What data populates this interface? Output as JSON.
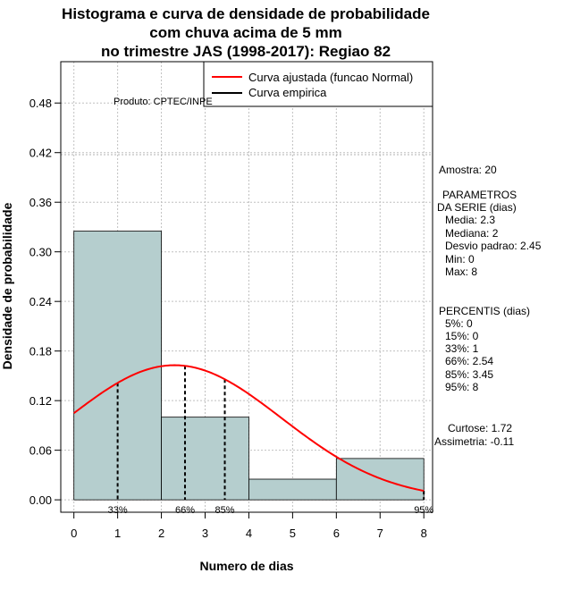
{
  "chart_data": {
    "type": "bar",
    "title": [
      "Histograma e curva de densidade de probabilidade",
      "com chuva acima de 5 mm",
      "no trimestre JAS (1998-2017): Regiao 82"
    ],
    "xlabel": "Numero de dias",
    "ylabel": "Densidade de probabilidade",
    "xlim": [
      -0.3,
      8.2
    ],
    "ylim": [
      -0.015,
      0.53
    ],
    "xticks": [
      0,
      1,
      2,
      3,
      4,
      5,
      6,
      7,
      8
    ],
    "yticks": [
      0.0,
      0.06,
      0.12,
      0.18,
      0.24,
      0.3,
      0.36,
      0.42,
      0.48
    ],
    "ytick_labels": [
      "0.00",
      "0.06",
      "0.12",
      "0.18",
      "0.24",
      "0.30",
      "0.36",
      "0.42",
      "0.48"
    ],
    "bins": [
      {
        "from": 0,
        "to": 2,
        "density": 0.325
      },
      {
        "from": 2,
        "to": 4,
        "density": 0.1
      },
      {
        "from": 4,
        "to": 6,
        "density": 0.025
      },
      {
        "from": 6,
        "to": 8,
        "density": 0.05
      }
    ],
    "bar_color": "#b5cece",
    "curve_color": "#ff0000",
    "normal_fit": {
      "mean": 2.3,
      "sd": 2.45,
      "x_from": 0,
      "x_to": 8
    },
    "percentile_lines": [
      {
        "x": 1,
        "label": "33%"
      },
      {
        "x": 2.54,
        "label": "66%"
      },
      {
        "x": 3.45,
        "label": "85%"
      },
      {
        "x": 8,
        "label": "95%"
      }
    ],
    "legend": [
      {
        "label": "Curva ajustada (funcao Normal)",
        "color": "#ff0000"
      },
      {
        "label": "Curva empirica",
        "color": "#000000"
      }
    ],
    "legend_position": "top-right",
    "grid": true
  },
  "credit": "Produto: CPTEC/INPE",
  "stats": {
    "amostra": "Amostra: 20",
    "parametros_title": [
      "PARAMETROS",
      "DA SERIE (dias)"
    ],
    "parametros": [
      "Media: 2.3",
      "Mediana: 2",
      "Desvio padrao: 2.45",
      "Min: 0",
      "Max: 8"
    ],
    "percentis_title": "PERCENTIS (dias)",
    "percentis": [
      "5%: 0",
      "15%: 0",
      "33%: 1",
      "66%: 2.54",
      "85%: 3.45",
      "95%: 8"
    ],
    "curtose": "Curtose: 1.72",
    "assimetria": "Assimetria: -0.11"
  }
}
